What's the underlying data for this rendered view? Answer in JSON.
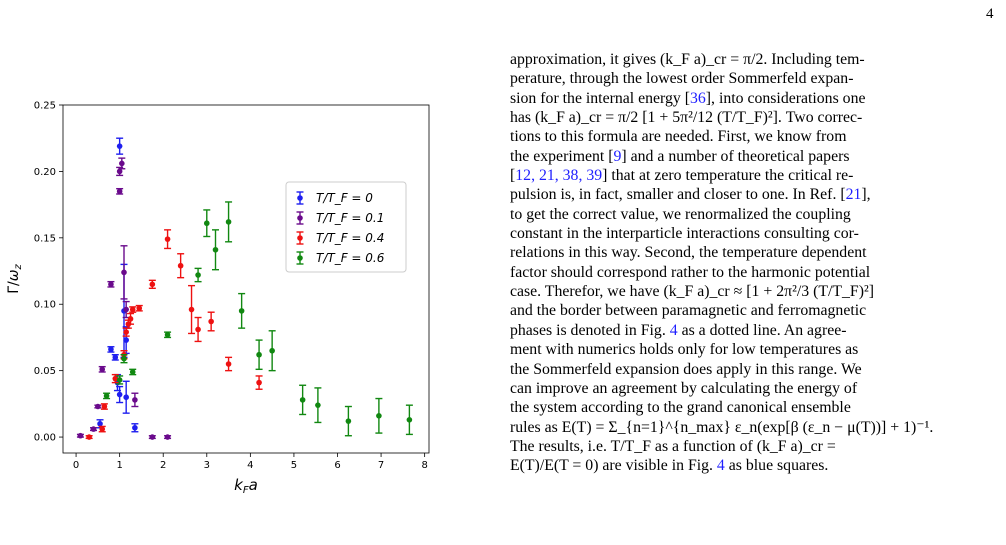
{
  "page_number": "4",
  "chart_data": {
    "type": "scatter",
    "xlabel": "k_F a",
    "ylabel": "Γ/ω_z",
    "xlim": [
      -0.3,
      8.1
    ],
    "ylim": [
      -0.012,
      0.25
    ],
    "xticks": [
      "0",
      "1",
      "2",
      "3",
      "4",
      "5",
      "6",
      "7",
      "8"
    ],
    "yticks": [
      "0.00",
      "0.05",
      "0.10",
      "0.15",
      "0.20",
      "0.25"
    ],
    "legend_position": "upper-right",
    "series": [
      {
        "name": "T/T_F = 0",
        "color": "#1f1fef",
        "points": [
          [
            0.55,
            0.01,
            0.003
          ],
          [
            0.8,
            0.066,
            0.002
          ],
          [
            0.9,
            0.06,
            0.002
          ],
          [
            0.95,
            0.041,
            0.006
          ],
          [
            1.0,
            0.219,
            0.006
          ],
          [
            1.0,
            0.032,
            0.006
          ],
          [
            1.1,
            0.095,
            0.035
          ],
          [
            1.15,
            0.073,
            0.01
          ],
          [
            1.15,
            0.03,
            0.012
          ],
          [
            1.35,
            0.007,
            0.003
          ]
        ]
      },
      {
        "name": "T/T_F = 0.1",
        "color": "#6a0a8c",
        "points": [
          [
            0.1,
            0.001,
            0.001
          ],
          [
            0.4,
            0.006,
            0.001
          ],
          [
            0.5,
            0.023,
            0.001
          ],
          [
            0.6,
            0.051,
            0.002
          ],
          [
            0.8,
            0.115,
            0.002
          ],
          [
            1.0,
            0.185,
            0.002
          ],
          [
            1.0,
            0.2,
            0.003
          ],
          [
            1.05,
            0.206,
            0.004
          ],
          [
            1.1,
            0.124,
            0.02
          ],
          [
            1.15,
            0.096,
            0.006
          ],
          [
            1.35,
            0.028,
            0.005
          ],
          [
            1.75,
            0.0,
            0.001
          ],
          [
            2.1,
            0.0,
            0.001
          ]
        ]
      },
      {
        "name": "T/T_F = 0.4",
        "color": "#ee1111",
        "points": [
          [
            0.3,
            0.0,
            0.001
          ],
          [
            0.6,
            0.006,
            0.002
          ],
          [
            0.65,
            0.023,
            0.002
          ],
          [
            0.9,
            0.044,
            0.003
          ],
          [
            1.1,
            0.062,
            0.003
          ],
          [
            1.15,
            0.079,
            0.003
          ],
          [
            1.2,
            0.085,
            0.003
          ],
          [
            1.25,
            0.089,
            0.004
          ],
          [
            1.3,
            0.096,
            0.002
          ],
          [
            1.45,
            0.097,
            0.002
          ],
          [
            1.75,
            0.115,
            0.003
          ],
          [
            2.1,
            0.149,
            0.007
          ],
          [
            2.4,
            0.129,
            0.009
          ],
          [
            2.65,
            0.096,
            0.018
          ],
          [
            2.8,
            0.081,
            0.009
          ],
          [
            3.1,
            0.087,
            0.007
          ],
          [
            3.5,
            0.055,
            0.005
          ],
          [
            4.2,
            0.041,
            0.005
          ]
        ]
      },
      {
        "name": "T/T_F = 0.6",
        "color": "#118811",
        "points": [
          [
            0.7,
            0.031,
            0.002
          ],
          [
            1.0,
            0.043,
            0.003
          ],
          [
            1.1,
            0.059,
            0.003
          ],
          [
            1.3,
            0.049,
            0.002
          ],
          [
            2.1,
            0.077,
            0.002
          ],
          [
            2.8,
            0.122,
            0.005
          ],
          [
            3.0,
            0.161,
            0.01
          ],
          [
            3.2,
            0.141,
            0.015
          ],
          [
            3.5,
            0.162,
            0.015
          ],
          [
            3.8,
            0.095,
            0.013
          ],
          [
            4.2,
            0.062,
            0.011
          ],
          [
            4.5,
            0.065,
            0.015
          ],
          [
            5.2,
            0.028,
            0.011
          ],
          [
            5.55,
            0.024,
            0.013
          ],
          [
            6.25,
            0.012,
            0.011
          ],
          [
            6.95,
            0.016,
            0.013
          ],
          [
            7.65,
            0.013,
            0.011
          ]
        ]
      }
    ]
  },
  "legend": {
    "t0": "T/T_F = 0",
    "t01": "T/T_F = 0.1",
    "t04": "T/T_F = 0.4",
    "t06": "T/T_F = 0.6"
  },
  "text": {
    "line1": "approximation, it gives (k_F a)_cr = π/2. Including tem-",
    "line2": "perature, through the lowest order Sommerfeld expan-",
    "line3a": "sion for the internal energy [",
    "line3ref": "36",
    "line3b": "], into considerations one",
    "line4": "has (k_F a)_cr = π/2 [1 + 5π²/12 (T/T_F)²].   Two correc-",
    "line5": "tions to this formula are needed.  First, we know from",
    "line6a": "the experiment [",
    "line6ref": "9",
    "line6b": "] and a number of theoretical papers",
    "line7a": "[",
    "line7refs": "12, 21, 38, 39",
    "line7b": "] that at zero temperature the critical re-",
    "line8a": "pulsion is, in fact, smaller and closer to one. In Ref. [",
    "line8ref": "21",
    "line8b": "],",
    "line9": "to get the correct value, we renormalized the coupling",
    "line10": "constant in the interparticle interactions consulting cor-",
    "line11": "relations in this way. Second, the temperature dependent",
    "line12": "factor should correspond rather to the harmonic potential",
    "line13": "case.  Therefor, we have (k_F a)_cr ≈ [1 + 2π²/3 (T/T_F)²]",
    "line14": "and the border between paramagnetic and ferromagnetic",
    "line15a": "phases is denoted in Fig. ",
    "line15ref": "4",
    "line15b": " as a dotted line.  An agree-",
    "line16": "ment with numerics holds only for low temperatures as",
    "line17": "the Sommerfeld expansion does apply in this range.  We",
    "line18": "can improve an agreement by calculating the energy of",
    "line19": "the system according to the grand canonical ensemble",
    "line20": "rules as E(T) = Σ_{n=1}^{n_max} ε_n(exp[β (ε_n − μ(T))] + 1)⁻¹.",
    "line21": "The results, i.e.  T/T_F as a function of (k_F a)_cr =",
    "line22a": "E(T)/E(T = 0) are visible in Fig. ",
    "line22ref": "4",
    "line22b": " as blue squares."
  }
}
